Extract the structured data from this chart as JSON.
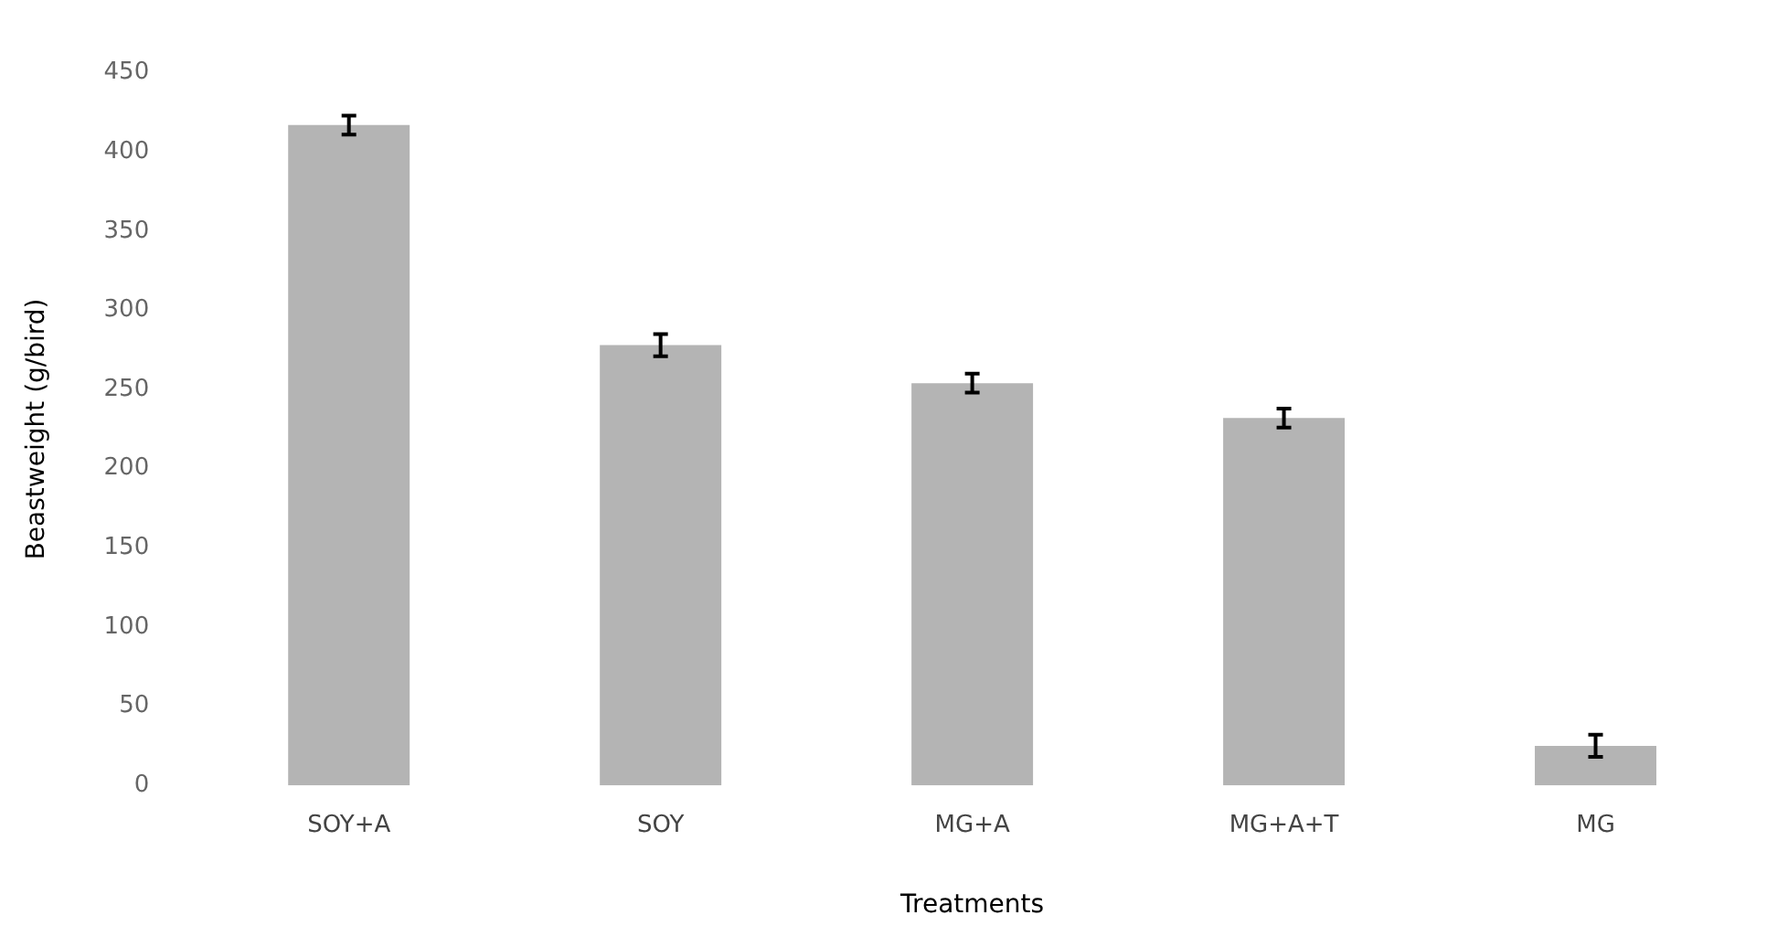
{
  "chart_data": {
    "type": "bar",
    "xlabel": "Treatments",
    "ylabel": "Beastweight (g/bird)",
    "categories": [
      "SOY+A",
      "SOY",
      "MG+A",
      "MG+A+T",
      "MG"
    ],
    "values": [
      417,
      278,
      254,
      232,
      25
    ],
    "errors": [
      6,
      7,
      6,
      6,
      7
    ],
    "color": "#b4b4b4",
    "ylim": [
      0,
      450
    ],
    "yticks": [
      0,
      50,
      100,
      150,
      200,
      250,
      300,
      350,
      400,
      450
    ],
    "grid": false,
    "legend": false
  }
}
